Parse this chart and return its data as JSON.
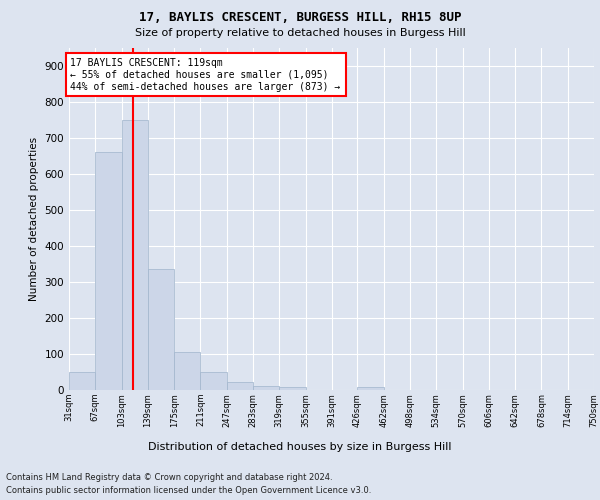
{
  "title": "17, BAYLIS CRESCENT, BURGESS HILL, RH15 8UP",
  "subtitle": "Size of property relative to detached houses in Burgess Hill",
  "xlabel": "Distribution of detached houses by size in Burgess Hill",
  "ylabel": "Number of detached properties",
  "bins": [
    31,
    67,
    103,
    139,
    175,
    211,
    247,
    283,
    319,
    355,
    391,
    426,
    462,
    498,
    534,
    570,
    606,
    642,
    678,
    714,
    750
  ],
  "bar_heights": [
    50,
    660,
    750,
    335,
    105,
    50,
    22,
    12,
    8,
    0,
    0,
    8,
    0,
    0,
    0,
    0,
    0,
    0,
    0,
    0
  ],
  "bar_color": "#ccd6e8",
  "bar_edge_color": "#a0b4cc",
  "vline_x": 119,
  "vline_color": "red",
  "annotation_text": "17 BAYLIS CRESCENT: 119sqm\n← 55% of detached houses are smaller (1,095)\n44% of semi-detached houses are larger (873) →",
  "annotation_box_color": "white",
  "annotation_box_edge": "red",
  "background_color": "#dde4f0",
  "plot_bg_color": "#dde4f0",
  "ylim": [
    0,
    950
  ],
  "yticks": [
    0,
    100,
    200,
    300,
    400,
    500,
    600,
    700,
    800,
    900
  ],
  "footer_line1": "Contains HM Land Registry data © Crown copyright and database right 2024.",
  "footer_line2": "Contains public sector information licensed under the Open Government Licence v3.0."
}
